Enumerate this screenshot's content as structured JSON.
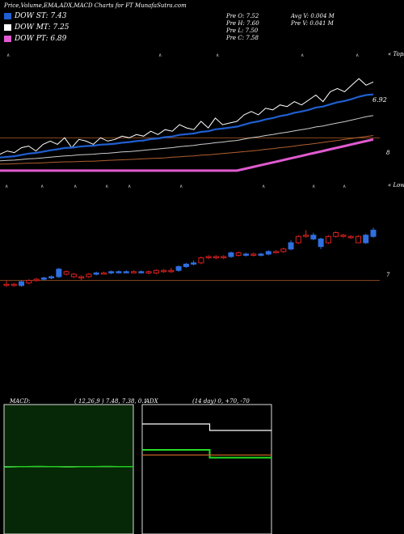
{
  "title": "Price,Volume,EMA,ADX,MACD Charts for FT MunafaSutra.com",
  "legend": [
    {
      "label": "DOW ST: 7.43",
      "color": "#1f5fd0"
    },
    {
      "label": "DOW MT: 7.25",
      "color": "#ffffff"
    },
    {
      "label": "DOW PT: 6.89",
      "color": "#e05ad0"
    }
  ],
  "ohlc": {
    "open": "Pre  O: 7.52",
    "high": "Pre  H: 7.60",
    "low": "Pre  L: 7.50",
    "close": "Pre  C: 7.58",
    "avg_vol": "Avg V: 0.004  M",
    "prev_vol": "Pre  V: 0.041 M"
  },
  "ema_panel": {
    "right_top": "« Tops",
    "last_value": "6.92",
    "ref_label": "8"
  },
  "candle_panel": {
    "right_top": "« Lows",
    "ref_label": "7"
  },
  "macd": {
    "label": "MACD:",
    "params": "( 12,26,9 ) 7.48,  7.38,  0.1"
  },
  "adx": {
    "label": "ADX",
    "params": "(14  day) 0,  +70,  -70"
  },
  "chart_data": [
    {
      "type": "line",
      "name": "EMA",
      "series": [
        {
          "name": "price",
          "color": "#ffffff",
          "values": [
            5.8,
            5.9,
            5.85,
            6.0,
            6.05,
            5.9,
            6.1,
            6.2,
            6.1,
            6.3,
            6.0,
            6.25,
            6.2,
            6.1,
            6.3,
            6.2,
            6.25,
            6.35,
            6.3,
            6.4,
            6.35,
            6.5,
            6.4,
            6.55,
            6.5,
            6.7,
            6.6,
            6.55,
            6.8,
            6.6,
            6.9,
            6.7,
            6.75,
            6.8,
            7.0,
            7.1,
            7.0,
            7.2,
            7.15,
            7.3,
            7.25,
            7.4,
            7.3,
            7.45,
            7.6,
            7.4,
            7.7,
            7.8,
            7.7,
            7.9,
            8.1,
            7.9,
            8.0
          ]
        },
        {
          "name": "ema-fast",
          "color": "#1f5fd0",
          "values": [
            5.7,
            5.72,
            5.74,
            5.78,
            5.82,
            5.84,
            5.88,
            5.92,
            5.95,
            5.99,
            6.0,
            6.03,
            6.05,
            6.06,
            6.09,
            6.1,
            6.12,
            6.15,
            6.17,
            6.2,
            6.22,
            6.26,
            6.28,
            6.32,
            6.34,
            6.39,
            6.41,
            6.43,
            6.48,
            6.5,
            6.56,
            6.58,
            6.61,
            6.64,
            6.7,
            6.76,
            6.8,
            6.86,
            6.9,
            6.96,
            7.0,
            7.06,
            7.1,
            7.15,
            7.22,
            7.25,
            7.32,
            7.38,
            7.42,
            7.48,
            7.55,
            7.6,
            7.62
          ]
        },
        {
          "name": "ema-mid",
          "color": "#cccccc",
          "values": [
            5.6,
            5.61,
            5.62,
            5.64,
            5.66,
            5.67,
            5.69,
            5.71,
            5.73,
            5.75,
            5.76,
            5.78,
            5.79,
            5.8,
            5.82,
            5.83,
            5.85,
            5.87,
            5.88,
            5.9,
            5.92,
            5.94,
            5.96,
            5.98,
            6.0,
            6.03,
            6.05,
            6.07,
            6.1,
            6.12,
            6.15,
            6.17,
            6.2,
            6.22,
            6.26,
            6.3,
            6.33,
            6.37,
            6.4,
            6.44,
            6.47,
            6.51,
            6.55,
            6.58,
            6.63,
            6.66,
            6.71,
            6.75,
            6.79,
            6.84,
            6.89,
            6.94,
            6.98
          ]
        },
        {
          "name": "ema-slow",
          "color": "#b06030",
          "values": [
            5.5,
            5.5,
            5.51,
            5.52,
            5.53,
            5.53,
            5.54,
            5.55,
            5.56,
            5.57,
            5.57,
            5.58,
            5.59,
            5.59,
            5.6,
            5.61,
            5.62,
            5.63,
            5.64,
            5.65,
            5.66,
            5.67,
            5.68,
            5.69,
            5.71,
            5.72,
            5.74,
            5.75,
            5.77,
            5.78,
            5.8,
            5.82,
            5.84,
            5.86,
            5.88,
            5.9,
            5.92,
            5.95,
            5.97,
            6.0,
            6.02,
            6.05,
            6.08,
            6.1,
            6.13,
            6.16,
            6.19,
            6.22,
            6.25,
            6.28,
            6.31,
            6.34,
            6.37
          ]
        },
        {
          "name": "ema-long",
          "color": "#e05ad0",
          "values": [
            5.3,
            5.3,
            5.3,
            5.3,
            5.3,
            5.3,
            5.3,
            5.3,
            5.3,
            5.3,
            5.3,
            5.3,
            5.3,
            5.3,
            5.3,
            5.3,
            5.3,
            5.3,
            5.3,
            5.3,
            5.3,
            5.3,
            5.3,
            5.3,
            5.3,
            5.3,
            5.3,
            5.3,
            5.3,
            5.3,
            5.3,
            5.3,
            5.3,
            5.3,
            5.35,
            5.4,
            5.45,
            5.5,
            5.55,
            5.6,
            5.65,
            5.7,
            5.75,
            5.8,
            5.85,
            5.9,
            5.95,
            6.0,
            6.05,
            6.1,
            6.15,
            6.2,
            6.25
          ]
        }
      ],
      "ylim": [
        5.2,
        8.4
      ],
      "ref_value": 6.3
    },
    {
      "type": "bar",
      "name": "candles",
      "ref_value": 7.0,
      "ylim": [
        6.85,
        7.75
      ],
      "candles": [
        {
          "o": 6.97,
          "c": 6.97,
          "h": 7.0,
          "l": 6.95,
          "up": false
        },
        {
          "o": 6.97,
          "c": 6.96,
          "h": 6.98,
          "l": 6.95,
          "up": false
        },
        {
          "o": 6.96,
          "c": 6.99,
          "h": 7.0,
          "l": 6.95,
          "up": true
        },
        {
          "o": 6.98,
          "c": 7.0,
          "h": 7.01,
          "l": 6.97,
          "up": false
        },
        {
          "o": 7.0,
          "c": 7.01,
          "h": 7.02,
          "l": 6.99,
          "up": false
        },
        {
          "o": 7.01,
          "c": 7.02,
          "h": 7.03,
          "l": 7.0,
          "up": true
        },
        {
          "o": 7.02,
          "c": 7.03,
          "h": 7.04,
          "l": 7.01,
          "up": true
        },
        {
          "o": 7.03,
          "c": 7.09,
          "h": 7.1,
          "l": 7.02,
          "up": true
        },
        {
          "o": 7.07,
          "c": 7.05,
          "h": 7.08,
          "l": 7.04,
          "up": false
        },
        {
          "o": 7.05,
          "c": 7.03,
          "h": 7.06,
          "l": 7.02,
          "up": false
        },
        {
          "o": 7.02,
          "c": 7.03,
          "h": 7.04,
          "l": 7.0,
          "up": false
        },
        {
          "o": 7.03,
          "c": 7.05,
          "h": 7.06,
          "l": 7.02,
          "up": false
        },
        {
          "o": 7.05,
          "c": 7.06,
          "h": 7.07,
          "l": 7.04,
          "up": true
        },
        {
          "o": 7.06,
          "c": 7.06,
          "h": 7.07,
          "l": 7.05,
          "up": false
        },
        {
          "o": 7.06,
          "c": 7.07,
          "h": 7.08,
          "l": 7.05,
          "up": true
        },
        {
          "o": 7.07,
          "c": 7.07,
          "h": 7.08,
          "l": 7.06,
          "up": true
        },
        {
          "o": 7.07,
          "c": 7.07,
          "h": 7.08,
          "l": 7.06,
          "up": true
        },
        {
          "o": 7.07,
          "c": 7.07,
          "h": 7.08,
          "l": 7.06,
          "up": false
        },
        {
          "o": 7.07,
          "c": 7.07,
          "h": 7.08,
          "l": 7.06,
          "up": true
        },
        {
          "o": 7.07,
          "c": 7.06,
          "h": 7.08,
          "l": 7.05,
          "up": false
        },
        {
          "o": 7.06,
          "c": 7.08,
          "h": 7.09,
          "l": 7.05,
          "up": false
        },
        {
          "o": 7.08,
          "c": 7.07,
          "h": 7.09,
          "l": 7.06,
          "up": false
        },
        {
          "o": 7.07,
          "c": 7.08,
          "h": 7.1,
          "l": 7.06,
          "up": false
        },
        {
          "o": 7.08,
          "c": 7.11,
          "h": 7.12,
          "l": 7.07,
          "up": true
        },
        {
          "o": 7.11,
          "c": 7.13,
          "h": 7.14,
          "l": 7.1,
          "up": true
        },
        {
          "o": 7.13,
          "c": 7.14,
          "h": 7.16,
          "l": 7.12,
          "up": true
        },
        {
          "o": 7.14,
          "c": 7.18,
          "h": 7.19,
          "l": 7.13,
          "up": false
        },
        {
          "o": 7.18,
          "c": 7.19,
          "h": 7.2,
          "l": 7.17,
          "up": false
        },
        {
          "o": 7.19,
          "c": 7.18,
          "h": 7.2,
          "l": 7.17,
          "up": false
        },
        {
          "o": 7.18,
          "c": 7.19,
          "h": 7.2,
          "l": 7.17,
          "up": false
        },
        {
          "o": 7.19,
          "c": 7.22,
          "h": 7.23,
          "l": 7.18,
          "up": true
        },
        {
          "o": 7.22,
          "c": 7.2,
          "h": 7.23,
          "l": 7.19,
          "up": false
        },
        {
          "o": 7.2,
          "c": 7.21,
          "h": 7.22,
          "l": 7.19,
          "up": true
        },
        {
          "o": 7.21,
          "c": 7.2,
          "h": 7.22,
          "l": 7.19,
          "up": false
        },
        {
          "o": 7.2,
          "c": 7.21,
          "h": 7.22,
          "l": 7.19,
          "up": true
        },
        {
          "o": 7.21,
          "c": 7.23,
          "h": 7.24,
          "l": 7.2,
          "up": true
        },
        {
          "o": 7.23,
          "c": 7.23,
          "h": 7.24,
          "l": 7.22,
          "up": false
        },
        {
          "o": 7.23,
          "c": 7.25,
          "h": 7.26,
          "l": 7.22,
          "up": false
        },
        {
          "o": 7.25,
          "c": 7.3,
          "h": 7.32,
          "l": 7.24,
          "up": true
        },
        {
          "o": 7.3,
          "c": 7.35,
          "h": 7.36,
          "l": 7.29,
          "up": false
        },
        {
          "o": 7.35,
          "c": 7.36,
          "h": 7.4,
          "l": 7.34,
          "up": false
        },
        {
          "o": 7.36,
          "c": 7.33,
          "h": 7.38,
          "l": 7.32,
          "up": true
        },
        {
          "o": 7.33,
          "c": 7.27,
          "h": 7.34,
          "l": 7.25,
          "up": true
        },
        {
          "o": 7.3,
          "c": 7.35,
          "h": 7.36,
          "l": 7.29,
          "up": false
        },
        {
          "o": 7.35,
          "c": 7.38,
          "h": 7.39,
          "l": 7.34,
          "up": false
        },
        {
          "o": 7.36,
          "c": 7.35,
          "h": 7.37,
          "l": 7.34,
          "up": false
        },
        {
          "o": 7.34,
          "c": 7.35,
          "h": 7.36,
          "l": 7.33,
          "up": false
        },
        {
          "o": 7.35,
          "c": 7.3,
          "h": 7.36,
          "l": 7.3,
          "up": false
        },
        {
          "o": 7.3,
          "c": 7.36,
          "h": 7.37,
          "l": 7.29,
          "up": true
        },
        {
          "o": 7.35,
          "c": 7.4,
          "h": 7.42,
          "l": 7.34,
          "up": true
        }
      ]
    },
    {
      "type": "line",
      "name": "MACD",
      "series": [
        {
          "name": "macd",
          "color": "#ffffff",
          "values": [
            0.1,
            0.1,
            0.1,
            0.1,
            0.1,
            0.1,
            0.1,
            0.1,
            0.1,
            0.1,
            0.1,
            0.1,
            0.1,
            0.1,
            0.1,
            0.1,
            0.1,
            0.1
          ]
        },
        {
          "name": "signal",
          "color": "#22cc22",
          "values": [
            0.08,
            0.09,
            0.1,
            0.1,
            0.11,
            0.11,
            0.1,
            0.1,
            0.09,
            0.09,
            0.1,
            0.1,
            0.1,
            0.11,
            0.11,
            0.1,
            0.1,
            0.1
          ]
        }
      ],
      "ylim": [
        -2,
        2
      ]
    },
    {
      "type": "line",
      "name": "ADX",
      "series": [
        {
          "name": "adx",
          "color": "#ffffff",
          "values": [
            70,
            70,
            70,
            70,
            70,
            70,
            70,
            70,
            70,
            70,
            70,
            70,
            60,
            60,
            60,
            60,
            60,
            60,
            60,
            60,
            60,
            60,
            60,
            60
          ]
        },
        {
          "name": "plus-di",
          "color": "#22dd22",
          "values": [
            30,
            30,
            30,
            30,
            30,
            30,
            30,
            30,
            30,
            30,
            30,
            30,
            18,
            18,
            18,
            18,
            18,
            18,
            18,
            18,
            18,
            18,
            18,
            18
          ]
        },
        {
          "name": "minus-di",
          "color": "#c06020",
          "values": [
            22,
            22,
            22,
            22,
            22,
            22,
            22,
            22,
            22,
            22,
            22,
            22,
            22,
            22,
            22,
            22,
            22,
            22,
            22,
            22,
            22,
            22,
            22,
            22
          ]
        }
      ],
      "ylim": [
        -100,
        100
      ]
    }
  ]
}
